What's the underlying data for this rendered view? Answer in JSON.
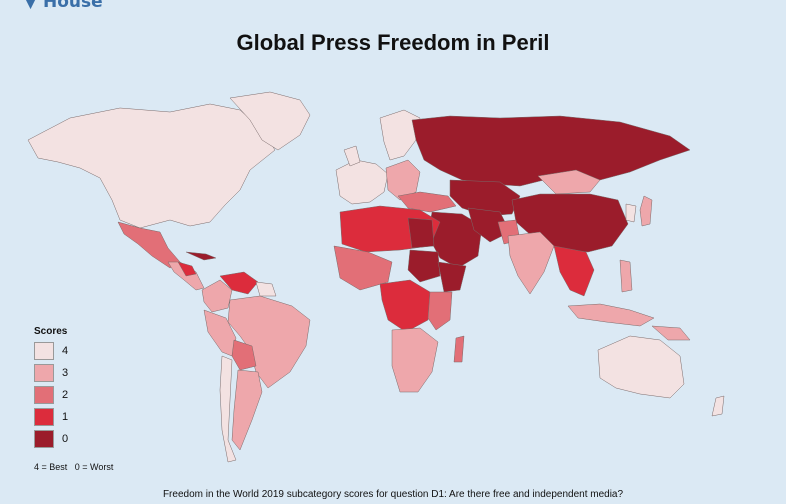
{
  "logo": "House",
  "title": "Global Press Freedom in Peril",
  "legend": {
    "title": "Scores",
    "items": [
      {
        "label": "4",
        "color": "#f3e2e2"
      },
      {
        "label": "3",
        "color": "#eea7ab"
      },
      {
        "label": "2",
        "color": "#e26f77"
      },
      {
        "label": "1",
        "color": "#dc2c3c"
      },
      {
        "label": "0",
        "color": "#9b1c2b"
      }
    ],
    "note": "4 = Best   0 = Worst"
  },
  "colors": {
    "ocean": "#dbe9f4",
    "border": "#7a6a6a"
  },
  "footer": "Freedom in the World 2019 subcategory scores for question D1: Are there free and independent media?"
}
